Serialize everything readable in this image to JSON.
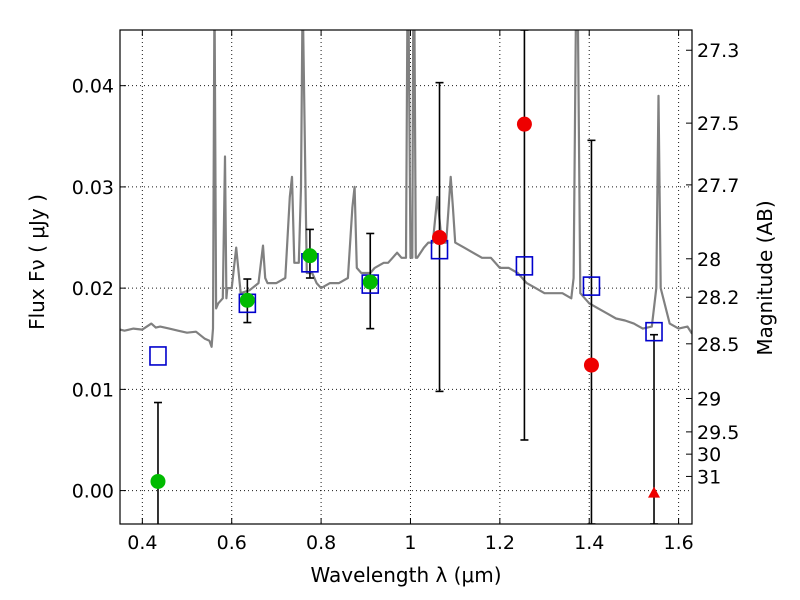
{
  "chart_data": {
    "type": "scatter",
    "title": "",
    "xlabel": "Wavelength  λ (μm)",
    "ylabel": "Flux  Fν  ( μJy )",
    "ylabel_right": "Magnitude (AB)",
    "xlim": [
      0.35,
      1.63
    ],
    "ylim": [
      -0.0033,
      0.0455
    ],
    "grid": true,
    "x_ticks": [
      0.4,
      0.6,
      0.8,
      1.0,
      1.2,
      1.4,
      1.6
    ],
    "x_tick_labels": [
      "0.4",
      "0.6",
      "0.8",
      "1",
      "1.2",
      "1.4",
      "1.6"
    ],
    "y_ticks": [
      0.0,
      0.01,
      0.02,
      0.03,
      0.04
    ],
    "y_tick_labels": [
      "0.00",
      "0.01",
      "0.02",
      "0.03",
      "0.04"
    ],
    "right_ticks": [
      {
        "label": "27.3",
        "flux": 0.0435
      },
      {
        "label": "27.5",
        "flux": 0.0363
      },
      {
        "label": "27.7",
        "flux": 0.0302
      },
      {
        "label": "28",
        "flux": 0.0229
      },
      {
        "label": "28.2",
        "flux": 0.0191
      },
      {
        "label": "28.5",
        "flux": 0.0145
      },
      {
        "label": "29",
        "flux": 0.0091
      },
      {
        "label": "29.5",
        "flux": 0.0058
      },
      {
        "label": "30",
        "flux": 0.0036
      },
      {
        "label": "31",
        "flux": 0.0014
      }
    ],
    "colors": {
      "model": "#808080",
      "model_points": "#0000cc",
      "detections": "#00bb00",
      "non_detections": "#ee0000",
      "errorbars": "#000000"
    },
    "series": [
      {
        "kind": "model_spectrum",
        "x": [
          0.35,
          0.36,
          0.38,
          0.4,
          0.42,
          0.43,
          0.44,
          0.46,
          0.48,
          0.5,
          0.52,
          0.54,
          0.55,
          0.555,
          0.558,
          0.561,
          0.562,
          0.565,
          0.57,
          0.58,
          0.585,
          0.588,
          0.59,
          0.6,
          0.61,
          0.62,
          0.64,
          0.66,
          0.67,
          0.675,
          0.68,
          0.7,
          0.72,
          0.73,
          0.735,
          0.74,
          0.75,
          0.755,
          0.758,
          0.76,
          0.765,
          0.768,
          0.78,
          0.79,
          0.8,
          0.82,
          0.84,
          0.86,
          0.87,
          0.875,
          0.88,
          0.89,
          0.9,
          0.91,
          0.92,
          0.94,
          0.95,
          0.96,
          0.97,
          0.98,
          0.99,
          0.993,
          0.996,
          1.0,
          1.004,
          1.006,
          1.009,
          1.012,
          1.015,
          1.03,
          1.04,
          1.05,
          1.06,
          1.07,
          1.08,
          1.09,
          1.095,
          1.1,
          1.12,
          1.14,
          1.16,
          1.18,
          1.2,
          1.22,
          1.24,
          1.25,
          1.26,
          1.28,
          1.3,
          1.32,
          1.34,
          1.36,
          1.365,
          1.37,
          1.375,
          1.38,
          1.4,
          1.42,
          1.44,
          1.46,
          1.48,
          1.5,
          1.52,
          1.54,
          1.55,
          1.555,
          1.56,
          1.58,
          1.6,
          1.62,
          1.63
        ],
        "y": [
          0.0159,
          0.0158,
          0.016,
          0.0159,
          0.0165,
          0.0161,
          0.0162,
          0.016,
          0.0158,
          0.0156,
          0.0157,
          0.015,
          0.0148,
          0.0142,
          0.016,
          0.0455,
          0.0455,
          0.018,
          0.0185,
          0.019,
          0.033,
          0.019,
          0.02,
          0.02,
          0.024,
          0.0195,
          0.0198,
          0.0205,
          0.0242,
          0.021,
          0.0205,
          0.0205,
          0.021,
          0.029,
          0.031,
          0.0225,
          0.0225,
          0.03,
          0.0455,
          0.0455,
          0.03,
          0.0215,
          0.0215,
          0.0205,
          0.02,
          0.0205,
          0.0205,
          0.021,
          0.028,
          0.03,
          0.022,
          0.0215,
          0.0215,
          0.0215,
          0.022,
          0.0225,
          0.0225,
          0.023,
          0.0235,
          0.023,
          0.023,
          0.0455,
          0.0455,
          0.023,
          0.023,
          0.0455,
          0.0455,
          0.023,
          0.023,
          0.024,
          0.0245,
          0.0245,
          0.029,
          0.0245,
          0.0245,
          0.031,
          0.028,
          0.0245,
          0.024,
          0.0235,
          0.023,
          0.023,
          0.022,
          0.022,
          0.0215,
          0.021,
          0.0205,
          0.02,
          0.0195,
          0.0195,
          0.0195,
          0.019,
          0.021,
          0.0455,
          0.0455,
          0.0195,
          0.0185,
          0.018,
          0.0175,
          0.017,
          0.0168,
          0.0165,
          0.016,
          0.0162,
          0.02,
          0.039,
          0.02,
          0.0165,
          0.016,
          0.0162,
          0.0155
        ]
      },
      {
        "kind": "model_photometry",
        "marker": "open-square",
        "x": [
          0.435,
          0.635,
          0.775,
          0.91,
          1.065,
          1.255,
          1.405,
          1.545
        ],
        "y": [
          0.0133,
          0.0185,
          0.0225,
          0.0204,
          0.0238,
          0.0222,
          0.0202,
          0.0157
        ]
      },
      {
        "kind": "detections",
        "marker": "filled-circle",
        "x": [
          0.435,
          0.635,
          0.775,
          0.91
        ],
        "y": [
          0.0009,
          0.0188,
          0.0232,
          0.0206
        ],
        "yerr_low": [
          0.0043,
          0.0022,
          0.0022,
          0.0046
        ],
        "yerr_high": [
          0.0078,
          0.0021,
          0.0026,
          0.0048
        ]
      },
      {
        "kind": "non_detections",
        "marker": "filled-circle",
        "x": [
          1.065,
          1.255,
          1.405
        ],
        "y": [
          0.025,
          0.0362,
          0.0124
        ],
        "yerr_low": [
          0.0152,
          0.0312,
          0.0157
        ],
        "yerr_high": [
          0.0153,
          0.0093,
          0.0222
        ]
      },
      {
        "kind": "upper_limit",
        "marker": "filled-triangle",
        "x": [
          1.545
        ],
        "y": [
          -0.0002
        ],
        "yerr_low": [
          0.0031
        ],
        "yerr_high": [
          0.0156
        ]
      }
    ]
  }
}
